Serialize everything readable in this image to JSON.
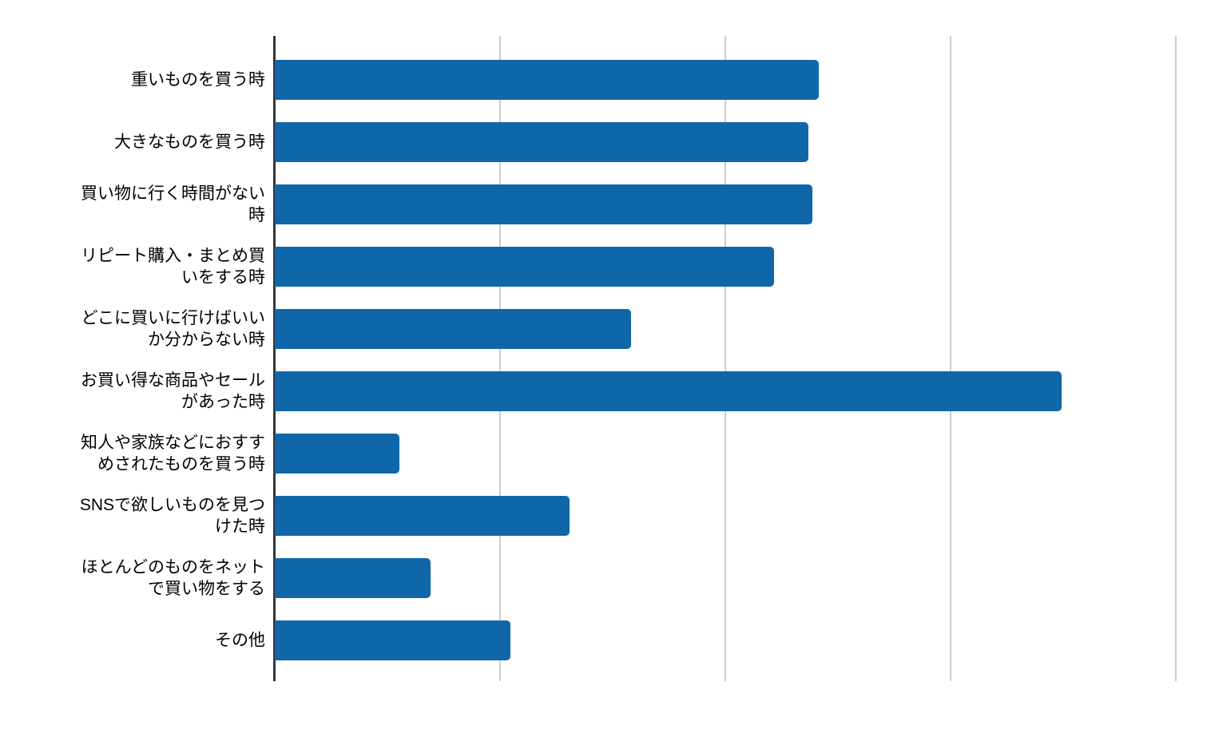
{
  "chart_data": {
    "type": "bar",
    "orientation": "horizontal",
    "title": "",
    "categories": [
      "重いものを買う時",
      "大きなものを買う時",
      "買い物に行く時間がない時",
      "リピート購入・まとめ買いをする時",
      "どこに買いに行けばいいか分からない時",
      "お買い得な商品やセールがあった時",
      "知人や家族などにおすすめされたものを買う時",
      "SNSで欲しいものを見つけた時",
      "ほとんどのものをネットで買い物をする",
      "その他"
    ],
    "display_labels": [
      "重いものを買う時",
      "大きなものを買う時",
      "買い物に行く時間がない\n時",
      "リピート購入・まとめ買\nいをする時",
      "どこに買いに行けばいい\nか分からない時",
      "お買い得な商品やセール\nがあった時",
      "知人や家族などにおすす\nめされたものを買う時",
      "SNSで欲しいものを見つ\nけた時",
      "ほとんどのものをネット\nで買い物をする",
      "その他"
    ],
    "values": [
      48.3,
      47.4,
      47.7,
      44.3,
      31.6,
      69.9,
      11.1,
      26.2,
      13.8,
      20.9
    ],
    "unit": "%",
    "xlabel": "",
    "ylabel": "",
    "xlim": [
      0,
      83.2
    ],
    "x_gridlines": [
      20,
      40,
      60,
      80
    ],
    "x_tick_labels_visible": false,
    "grid": "vertical-only",
    "legend": "none",
    "bar_color": "#0F67AA",
    "axis_line_color": "#30363D",
    "gridline_color": "#CCCCCC",
    "label_text_color": "#000000",
    "background_color": "#FFFFFF"
  }
}
